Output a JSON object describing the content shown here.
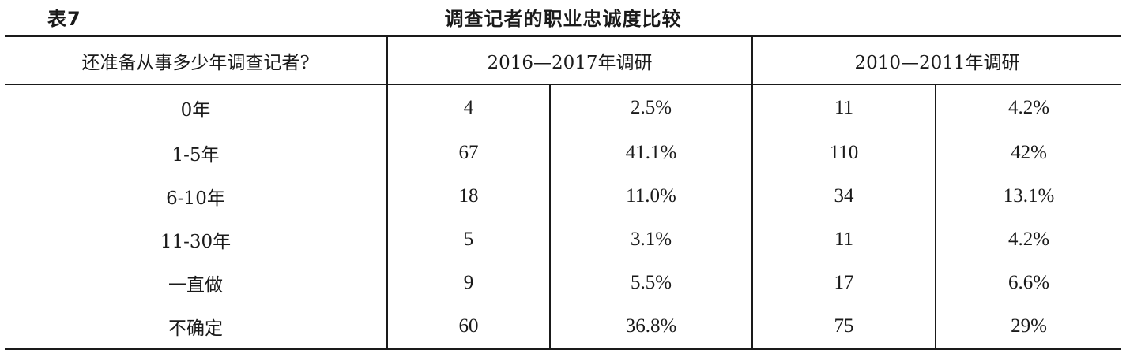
{
  "table_label": "表7",
  "table_title": "调查记者的职业忠诚度比较",
  "columns": {
    "question": "还准备从事多少年调查记者?",
    "survey_a": "2016—2017年调研",
    "survey_b": "2010—2011年调研"
  },
  "rows": [
    {
      "label": "0年",
      "a_count": "4",
      "a_pct": "2.5%",
      "b_count": "11",
      "b_pct": "4.2%"
    },
    {
      "label": "1-5年",
      "a_count": "67",
      "a_pct": "41.1%",
      "b_count": "110",
      "b_pct": "42%"
    },
    {
      "label": "6-10年",
      "a_count": "18",
      "a_pct": "11.0%",
      "b_count": "34",
      "b_pct": "13.1%"
    },
    {
      "label": "11-30年",
      "a_count": "5",
      "a_pct": "3.1%",
      "b_count": "11",
      "b_pct": "4.2%"
    },
    {
      "label": "一直做",
      "a_count": "9",
      "a_pct": "5.5%",
      "b_count": "17",
      "b_pct": "6.6%"
    },
    {
      "label": "不确定",
      "a_count": "60",
      "a_pct": "36.8%",
      "b_count": "75",
      "b_pct": "29%"
    }
  ]
}
